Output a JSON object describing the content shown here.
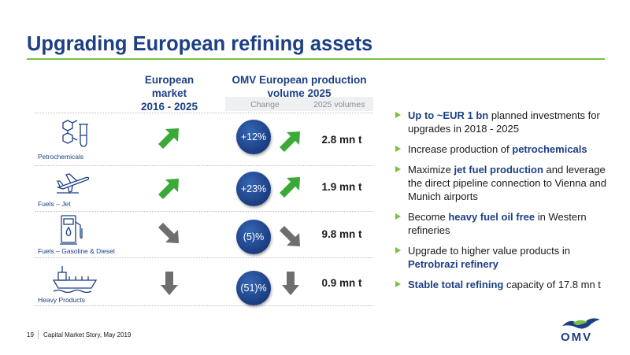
{
  "title": "Upgrading European refining assets",
  "columns": {
    "market": "European market 2016 - 2025",
    "market_line1": "European market",
    "market_line2": "2016 - 2025",
    "omv_line1": "OMV European production",
    "omv_line2": "volume 2025",
    "change": "Change",
    "volumes": "2025 volumes"
  },
  "rows": [
    {
      "label": "Petrochemicals",
      "icon": "petrochemicals-icon",
      "market_trend": "up",
      "change": "+12%",
      "omv_trend": "up",
      "volume": "2.8 mn t"
    },
    {
      "label": "Fuels – Jet",
      "icon": "airplane-icon",
      "market_trend": "up",
      "change": "+23%",
      "omv_trend": "up",
      "volume": "1.9 mn t"
    },
    {
      "label": "Fuels – Gasoline & Diesel",
      "icon": "fuel-pump-icon",
      "market_trend": "down",
      "change": "(5)%",
      "omv_trend": "down",
      "volume": "9.8 mn t"
    },
    {
      "label": "Heavy Products",
      "icon": "ship-icon",
      "market_trend": "strong-down",
      "change": "(51)%",
      "omv_trend": "strong-down",
      "volume": "0.9 mn t"
    }
  ],
  "bullets": [
    {
      "bold": "Up to ~EUR 1 bn",
      "text": " planned investments for upgrades in 2018 - 2025"
    },
    {
      "pre": "Increase production of ",
      "bold": "petrochemicals"
    },
    {
      "pre": "Maximize ",
      "bold": "jet fuel production",
      "text": " and leverage the direct pipeline connection to Vienna and Munich airports"
    },
    {
      "pre": "Become ",
      "bold": "heavy fuel oil free",
      "text": " in Western refineries"
    },
    {
      "pre": "Upgrade to higher value products in ",
      "bold": "Petrobrazi refinery"
    },
    {
      "bold": "Stable total refining",
      "text": " capacity of 17.8 mn t"
    }
  ],
  "footer": {
    "page": "19",
    "text": "Capital Market Story, May 2019"
  },
  "logo": {
    "text": "OMV"
  },
  "colors": {
    "brand_blue": "#1c3f85",
    "accent_green": "#7bbf43",
    "arrow_green": "#3aa935",
    "arrow_grey": "#6e6e6e"
  }
}
